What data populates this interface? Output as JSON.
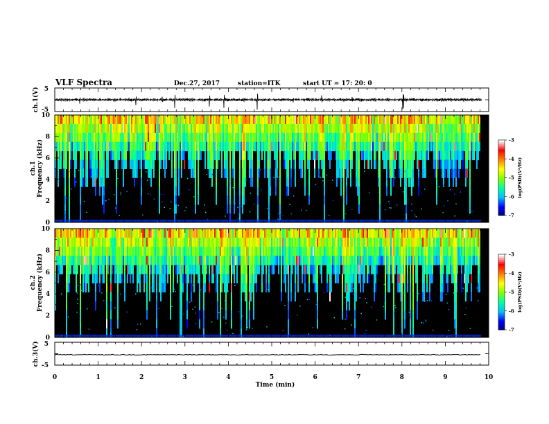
{
  "header": {
    "title": "VLF Spectra",
    "date": "Dec.27, 2017",
    "station": "station=ITK",
    "start": "start  UT  =   17: 20: 0"
  },
  "chart_data": [
    {
      "id": "ch1-waveform",
      "type": "line",
      "ylabel": "ch.1(V)",
      "ylim": [
        -5,
        5
      ],
      "yticks": [
        "5",
        "-5"
      ],
      "xlim": [
        0,
        10
      ],
      "grid": false
    },
    {
      "id": "ch1-spectrogram",
      "type": "heatmap",
      "ylabel": "ch.1\nFrequency  (kHz)",
      "ylim": [
        0,
        10
      ],
      "yticks": [
        "0",
        "2",
        "4",
        "6",
        "8",
        "10"
      ],
      "xlim": [
        0,
        10
      ],
      "colorbar": {
        "ticks": [
          "-3",
          "-4",
          "-5",
          "-6",
          "-7"
        ],
        "label": "log(PSD)(V²/Hz)",
        "range": [
          -7,
          -3
        ]
      }
    },
    {
      "id": "ch2-spectrogram",
      "type": "heatmap",
      "ylabel": "ch.2\nFrequency  (kHz)",
      "ylim": [
        0,
        10
      ],
      "yticks": [
        "0",
        "2",
        "4",
        "6",
        "8",
        "10"
      ],
      "xlim": [
        0,
        10
      ],
      "colorbar": {
        "ticks": [
          "-3",
          "-4",
          "-5",
          "-6",
          "-7"
        ],
        "label": "log(PSD)(V²/Hz)",
        "range": [
          -7,
          -3
        ]
      }
    },
    {
      "id": "ch3-waveform",
      "type": "line",
      "ylabel": "ch.3(V)",
      "ylim": [
        -5,
        5
      ],
      "yticks": [
        "5",
        "-5"
      ],
      "xlim": [
        0,
        10
      ],
      "grid": false
    }
  ],
  "xaxis": {
    "label": "Time  (min)",
    "ticks": [
      "0",
      "1",
      "2",
      "3",
      "4",
      "5",
      "6",
      "7",
      "8",
      "9",
      "10"
    ]
  },
  "colors": {
    "background": "#000000",
    "colormap": [
      "#000080",
      "#0000ff",
      "#00c0ff",
      "#00ffa0",
      "#80ff00",
      "#ffff00",
      "#ff8000",
      "#ff0000",
      "#ffffff"
    ]
  }
}
